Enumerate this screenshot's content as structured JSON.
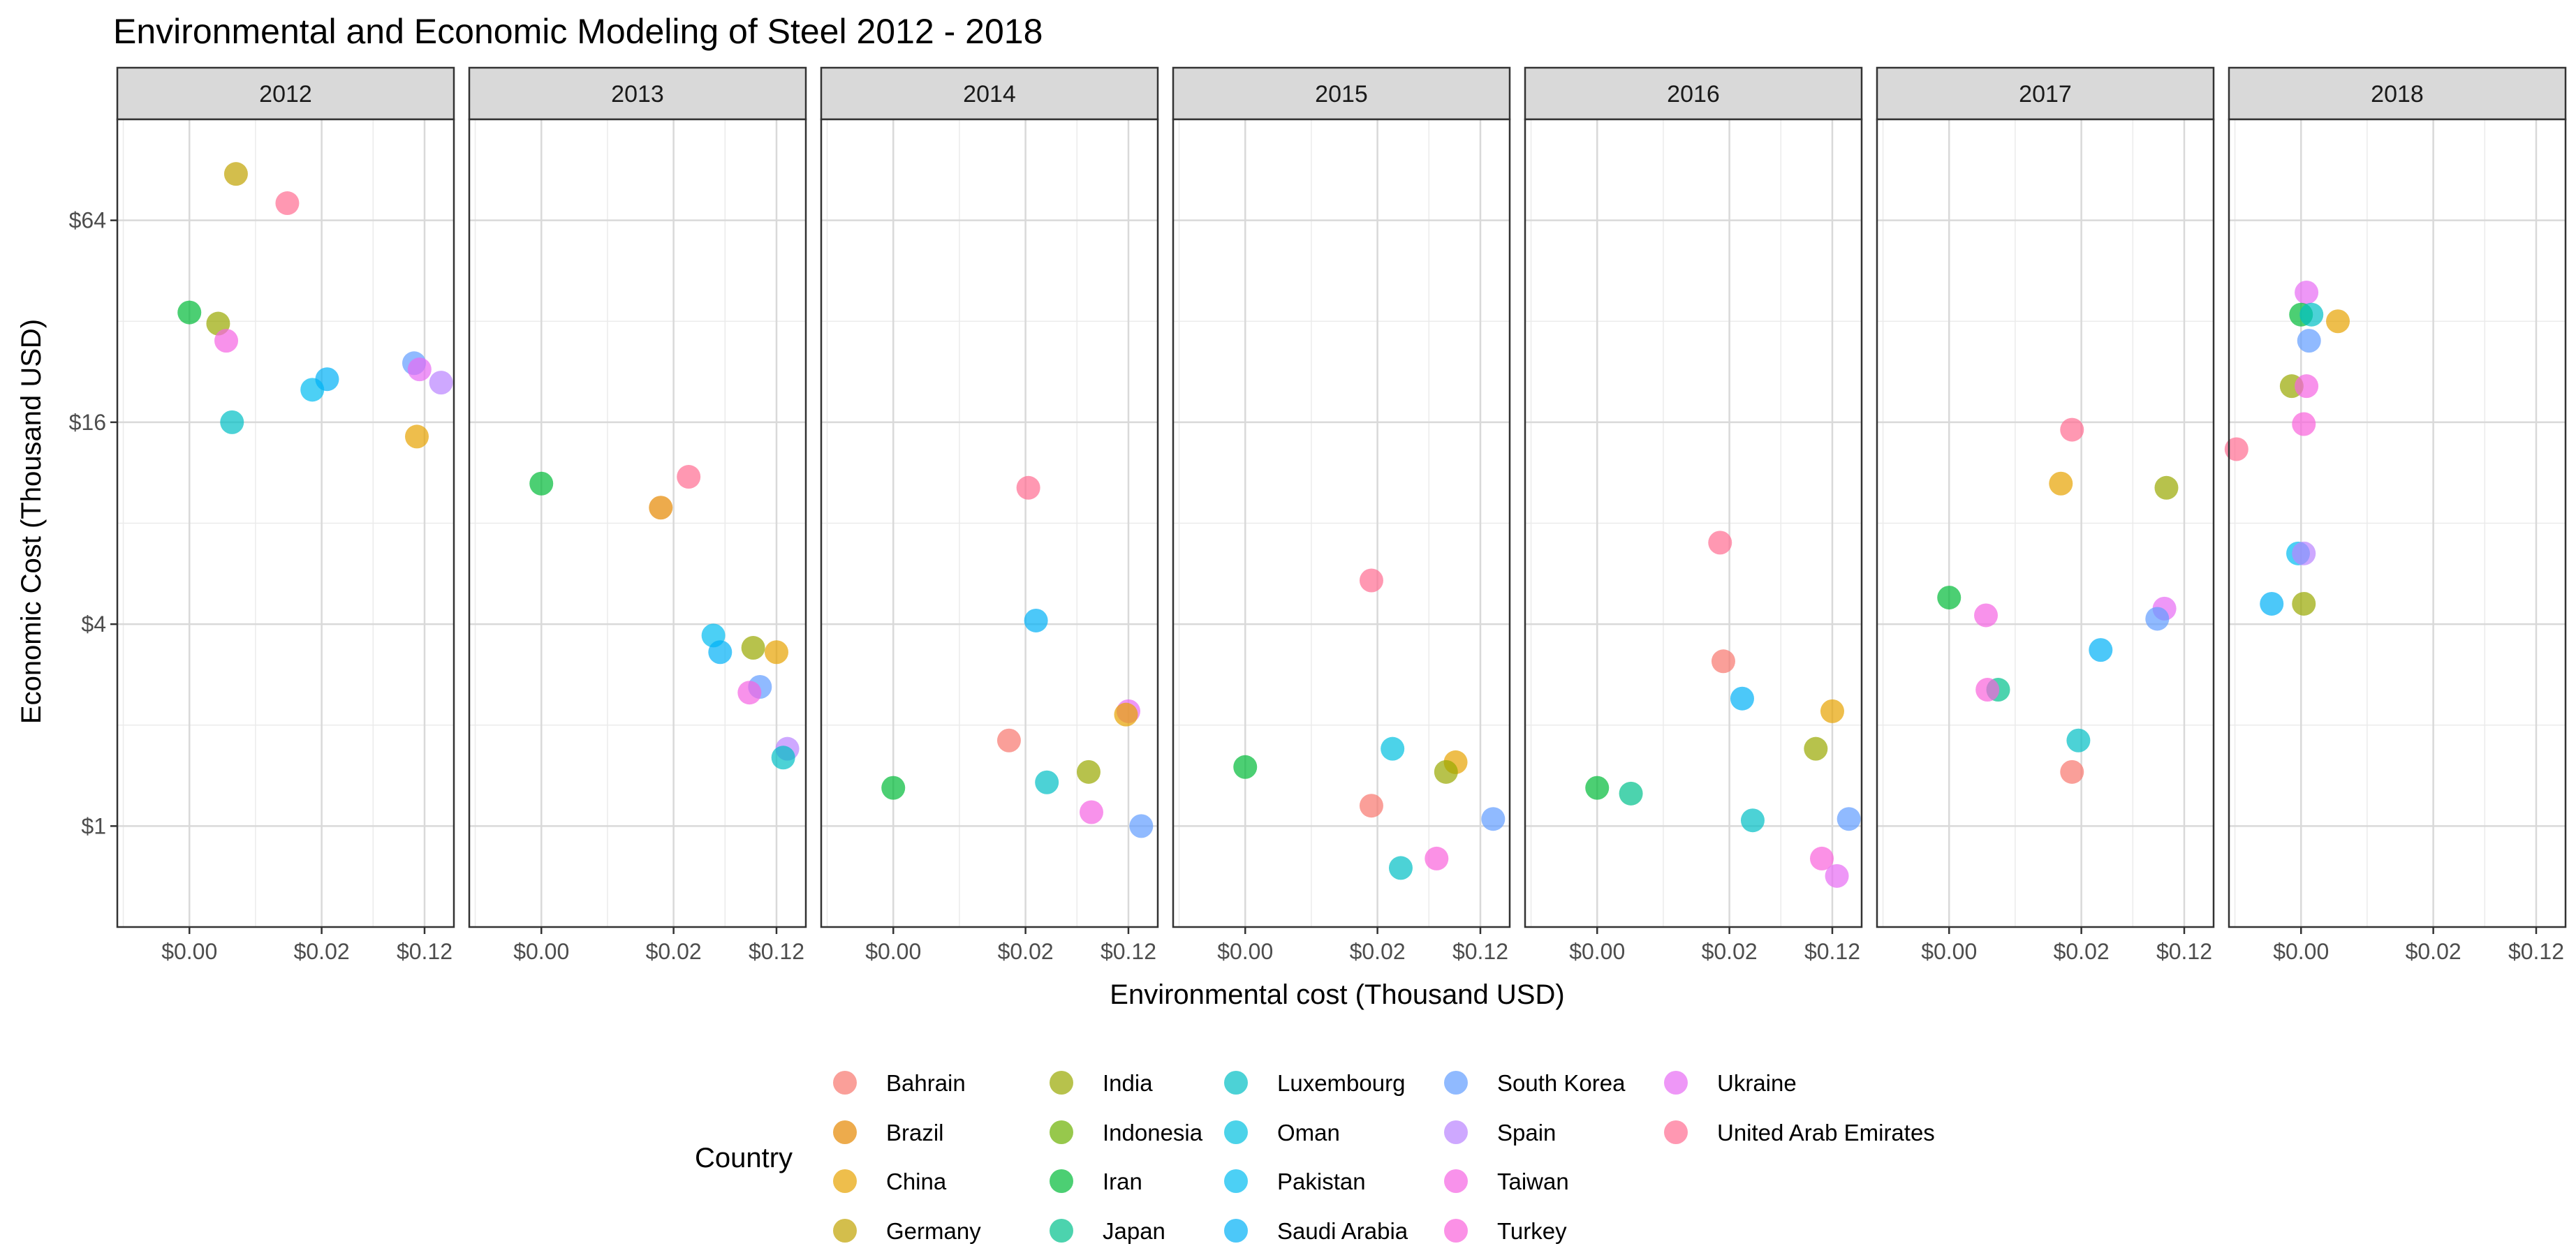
{
  "chart_data": {
    "type": "scatter",
    "title": "Environmental and Economic Modeling of Steel 2012 - 2018",
    "xlabel": "Environmental cost (Thousand USD)",
    "ylabel": "Economic Cost (Thousand USD)",
    "x_scale": "log",
    "y_scale": "log2",
    "x_ticks": [
      {
        "label": "$0.00",
        "value": 0.002
      },
      {
        "label": "$0.02",
        "value": 0.02
      },
      {
        "label": "$0.12",
        "value": 0.12
      }
    ],
    "y_ticks": [
      {
        "label": "$1",
        "value": 1
      },
      {
        "label": "$4",
        "value": 4
      },
      {
        "label": "$16",
        "value": 16
      },
      {
        "label": "$64",
        "value": 64
      }
    ],
    "xlim": [
      0.00057,
      0.2
    ],
    "ylim": [
      0.5,
      128
    ],
    "legend_title": "Country",
    "countries": [
      {
        "name": "Bahrain",
        "color": "#F8766D"
      },
      {
        "name": "Brazil",
        "color": "#E58700"
      },
      {
        "name": "China",
        "color": "#E7A300"
      },
      {
        "name": "Germany",
        "color": "#C0A200"
      },
      {
        "name": "India",
        "color": "#99A800"
      },
      {
        "name": "Indonesia",
        "color": "#6BB100"
      },
      {
        "name": "Iran",
        "color": "#00BA38"
      },
      {
        "name": "Japan",
        "color": "#00C08B"
      },
      {
        "name": "Luxembourg",
        "color": "#00BFC4"
      },
      {
        "name": "Oman",
        "color": "#00C0DF"
      },
      {
        "name": "Pakistan",
        "color": "#00BCF1"
      },
      {
        "name": "Saudi Arabia",
        "color": "#00B0F6"
      },
      {
        "name": "South Korea",
        "color": "#619CFF"
      },
      {
        "name": "Spain",
        "color": "#B983FF"
      },
      {
        "name": "Taiwan",
        "color": "#F564E3"
      },
      {
        "name": "Turkey",
        "color": "#FA62DB"
      },
      {
        "name": "Ukraine",
        "color": "#E76BF3"
      },
      {
        "name": "United Arab Emirates",
        "color": "#FF6C91"
      }
    ],
    "panels": [
      {
        "year": "2012",
        "points": [
          {
            "country": "Germany",
            "x": 0.0045,
            "y": 88
          },
          {
            "country": "United Arab Emirates",
            "x": 0.011,
            "y": 72
          },
          {
            "country": "Iran",
            "x": 0.002,
            "y": 34
          },
          {
            "country": "India",
            "x": 0.0033,
            "y": 31.5
          },
          {
            "country": "Taiwan",
            "x": 0.0038,
            "y": 28
          },
          {
            "country": "Luxembourg",
            "x": 0.0042,
            "y": 16
          },
          {
            "country": "Pakistan",
            "x": 0.017,
            "y": 20
          },
          {
            "country": "Saudi Arabia",
            "x": 0.022,
            "y": 21.5
          },
          {
            "country": "South Korea",
            "x": 0.1,
            "y": 24
          },
          {
            "country": "Ukraine",
            "x": 0.11,
            "y": 23
          },
          {
            "country": "Spain",
            "x": 0.16,
            "y": 21
          },
          {
            "country": "China",
            "x": 0.105,
            "y": 14.5
          }
        ]
      },
      {
        "year": "2013",
        "points": [
          {
            "country": "Iran",
            "x": 0.002,
            "y": 10.5
          },
          {
            "country": "United Arab Emirates",
            "x": 0.026,
            "y": 11
          },
          {
            "country": "Brazil",
            "x": 0.016,
            "y": 8.9
          },
          {
            "country": "Pakistan",
            "x": 0.04,
            "y": 3.7
          },
          {
            "country": "Saudi Arabia",
            "x": 0.045,
            "y": 3.3
          },
          {
            "country": "India",
            "x": 0.08,
            "y": 3.4
          },
          {
            "country": "China",
            "x": 0.12,
            "y": 3.3
          },
          {
            "country": "South Korea",
            "x": 0.09,
            "y": 2.6
          },
          {
            "country": "Taiwan",
            "x": 0.075,
            "y": 2.5
          },
          {
            "country": "Spain",
            "x": 0.145,
            "y": 1.7
          },
          {
            "country": "Luxembourg",
            "x": 0.135,
            "y": 1.6
          }
        ]
      },
      {
        "year": "2014",
        "points": [
          {
            "country": "United Arab Emirates",
            "x": 0.021,
            "y": 10.2
          },
          {
            "country": "Saudi Arabia",
            "x": 0.024,
            "y": 4.1
          },
          {
            "country": "Bahrain",
            "x": 0.015,
            "y": 1.8
          },
          {
            "country": "Iran",
            "x": 0.002,
            "y": 1.3
          },
          {
            "country": "Luxembourg",
            "x": 0.029,
            "y": 1.35
          },
          {
            "country": "India",
            "x": 0.06,
            "y": 1.45
          },
          {
            "country": "Ukraine",
            "x": 0.12,
            "y": 2.2
          },
          {
            "country": "China",
            "x": 0.115,
            "y": 2.15
          },
          {
            "country": "Taiwan",
            "x": 0.063,
            "y": 1.1
          },
          {
            "country": "South Korea",
            "x": 0.15,
            "y": 1.0
          }
        ]
      },
      {
        "year": "2015",
        "points": [
          {
            "country": "United Arab Emirates",
            "x": 0.018,
            "y": 5.4
          },
          {
            "country": "Oman",
            "x": 0.026,
            "y": 1.7
          },
          {
            "country": "China",
            "x": 0.078,
            "y": 1.55
          },
          {
            "country": "Iran",
            "x": 0.002,
            "y": 1.5
          },
          {
            "country": "India",
            "x": 0.066,
            "y": 1.45
          },
          {
            "country": "Bahrain",
            "x": 0.018,
            "y": 1.15
          },
          {
            "country": "South Korea",
            "x": 0.15,
            "y": 1.05
          },
          {
            "country": "Turkey",
            "x": 0.056,
            "y": 0.8
          },
          {
            "country": "Luxembourg",
            "x": 0.03,
            "y": 0.75
          }
        ]
      },
      {
        "year": "2016",
        "points": [
          {
            "country": "United Arab Emirates",
            "x": 0.017,
            "y": 7.0
          },
          {
            "country": "Bahrain",
            "x": 0.018,
            "y": 3.1
          },
          {
            "country": "Saudi Arabia",
            "x": 0.025,
            "y": 2.4
          },
          {
            "country": "China",
            "x": 0.12,
            "y": 2.2
          },
          {
            "country": "India",
            "x": 0.09,
            "y": 1.7
          },
          {
            "country": "Iran",
            "x": 0.002,
            "y": 1.3
          },
          {
            "country": "Japan",
            "x": 0.0036,
            "y": 1.25
          },
          {
            "country": "Luxembourg",
            "x": 0.03,
            "y": 1.04
          },
          {
            "country": "South Korea",
            "x": 0.16,
            "y": 1.05
          },
          {
            "country": "Turkey",
            "x": 0.1,
            "y": 0.8
          },
          {
            "country": "Ukraine",
            "x": 0.13,
            "y": 0.71
          }
        ]
      },
      {
        "year": "2017",
        "points": [
          {
            "country": "United Arab Emirates",
            "x": 0.017,
            "y": 15.2
          },
          {
            "country": "China",
            "x": 0.014,
            "y": 10.5
          },
          {
            "country": "India",
            "x": 0.088,
            "y": 10.2
          },
          {
            "country": "Iran",
            "x": 0.002,
            "y": 4.8
          },
          {
            "country": "Ukraine",
            "x": 0.085,
            "y": 4.45
          },
          {
            "country": "Taiwan",
            "x": 0.0038,
            "y": 4.25
          },
          {
            "country": "South Korea",
            "x": 0.075,
            "y": 4.15
          },
          {
            "country": "Saudi Arabia",
            "x": 0.028,
            "y": 3.35
          },
          {
            "country": "Japan",
            "x": 0.0047,
            "y": 2.55
          },
          {
            "country": "Turkey",
            "x": 0.0039,
            "y": 2.55
          },
          {
            "country": "Luxembourg",
            "x": 0.019,
            "y": 1.8
          },
          {
            "country": "Bahrain",
            "x": 0.017,
            "y": 1.45
          }
        ]
      },
      {
        "year": "2018",
        "points": [
          {
            "country": "Ukraine",
            "x": 0.0022,
            "y": 39
          },
          {
            "country": "Iran",
            "x": 0.002,
            "y": 33.5
          },
          {
            "country": "Luxembourg",
            "x": 0.0024,
            "y": 33.5
          },
          {
            "country": "China",
            "x": 0.0038,
            "y": 32
          },
          {
            "country": "South Korea",
            "x": 0.0023,
            "y": 28
          },
          {
            "country": "India",
            "x": 0.0017,
            "y": 20.5
          },
          {
            "country": "Taiwan",
            "x": 0.0022,
            "y": 20.5
          },
          {
            "country": "Turkey",
            "x": 0.0021,
            "y": 15.8
          },
          {
            "country": "United Arab Emirates",
            "x": 0.00065,
            "y": 13.3
          },
          {
            "country": "Pakistan",
            "x": 0.0019,
            "y": 6.5
          },
          {
            "country": "Spain",
            "x": 0.0021,
            "y": 6.5
          },
          {
            "country": "Saudi Arabia",
            "x": 0.0012,
            "y": 4.6
          },
          {
            "country": "India",
            "x": 0.0021,
            "y": 4.6
          }
        ]
      }
    ]
  }
}
